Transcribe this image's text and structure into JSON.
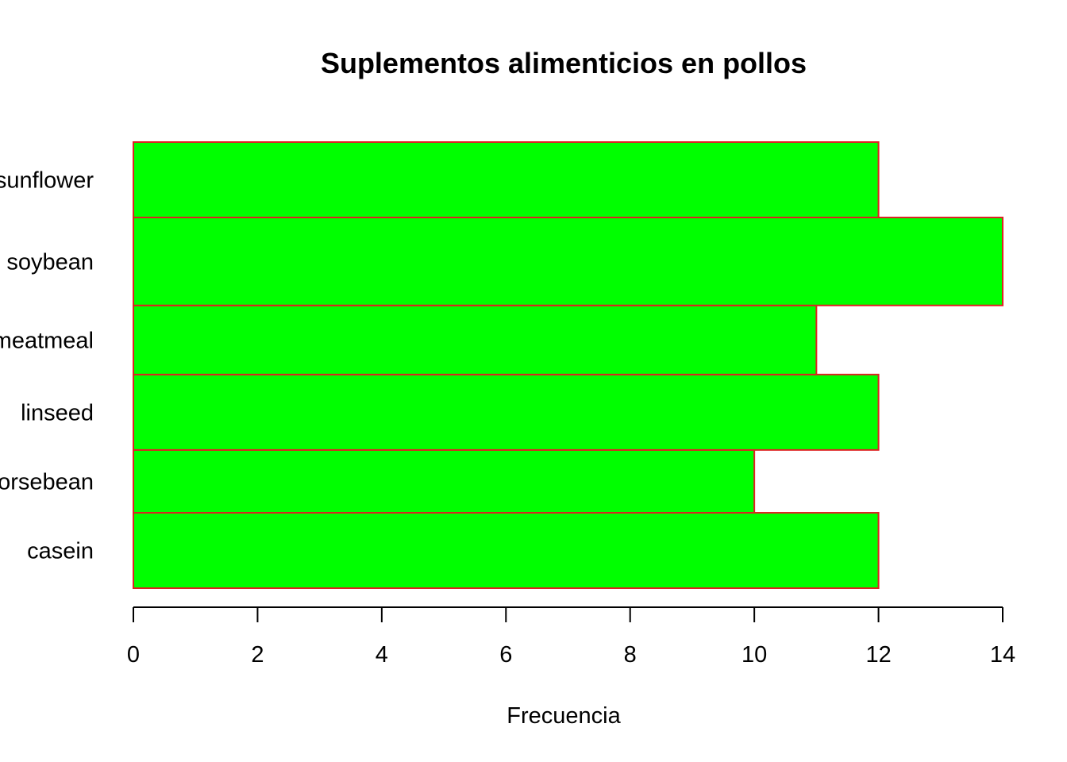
{
  "chart_data": {
    "type": "bar",
    "orientation": "horizontal",
    "title": "Suplementos alimenticios en pollos",
    "xlabel": "Frecuencia",
    "ylabel": "",
    "categories": [
      "casein",
      "horsebean",
      "linseed",
      "meatmeal",
      "soybean",
      "sunflower"
    ],
    "values": [
      12,
      10,
      12,
      11,
      14,
      12
    ],
    "xlim": [
      0,
      14
    ],
    "x_ticks": [
      0,
      2,
      4,
      6,
      8,
      10,
      12,
      14
    ],
    "bar_fill_color": "#00ff00",
    "bar_border_color": "#dd2222",
    "grid": false,
    "legend": "none"
  }
}
